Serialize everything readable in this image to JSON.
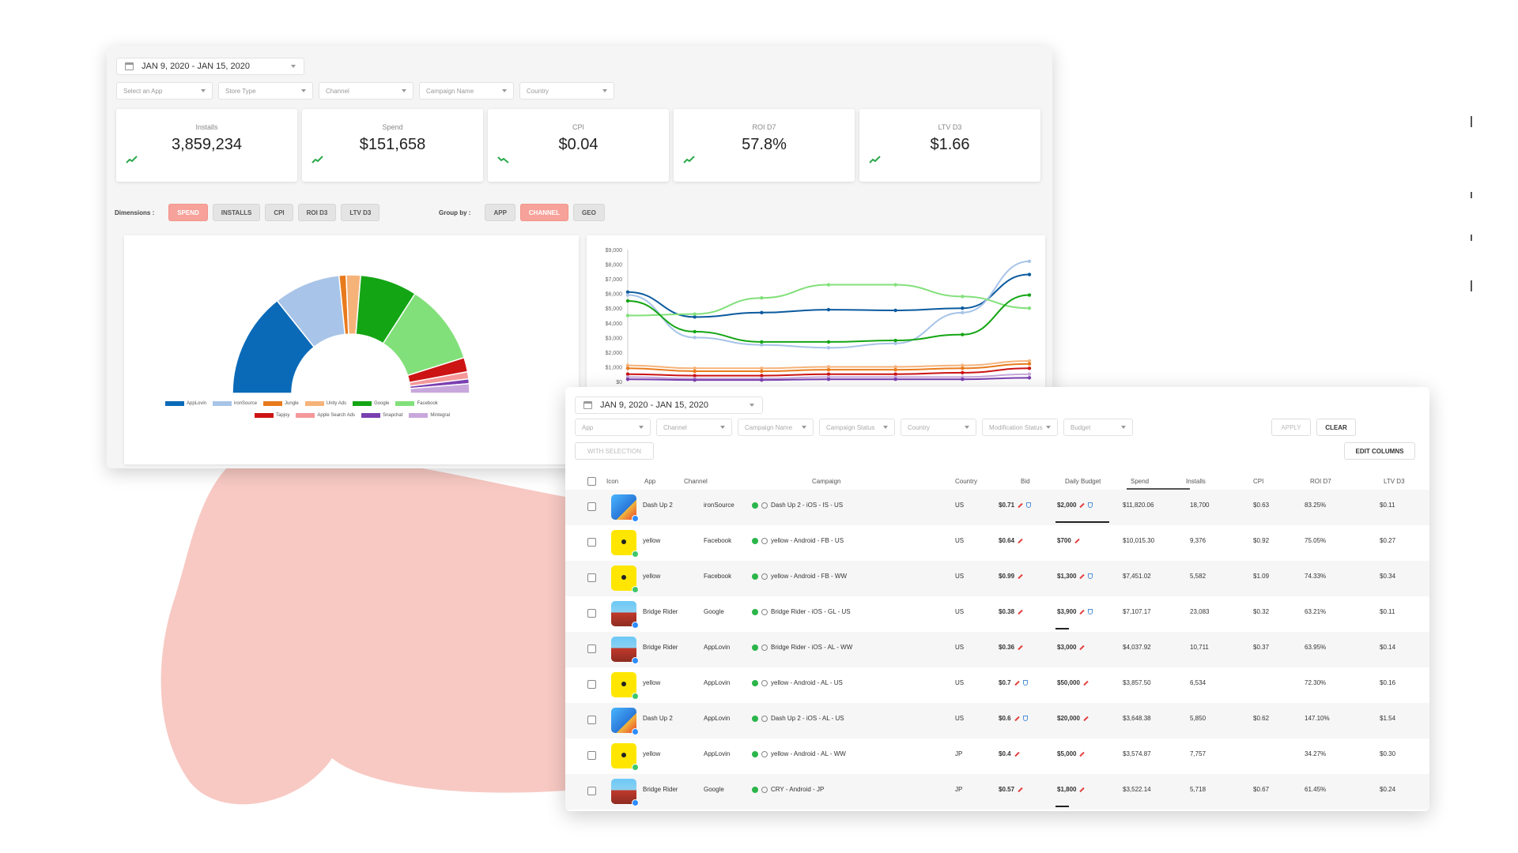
{
  "dashboard": {
    "date_range": "JAN 9, 2020 - JAN 15, 2020",
    "filters": [
      "Select an App",
      "Store Type",
      "Channel",
      "Campaign Name",
      "Country"
    ],
    "kpis": [
      {
        "label": "Installs",
        "value": "3,859,234",
        "trend": "up"
      },
      {
        "label": "Spend",
        "value": "$151,658",
        "trend": "up"
      },
      {
        "label": "CPI",
        "value": "$0.04",
        "trend": "down"
      },
      {
        "label": "ROI D7",
        "value": "57.8%",
        "trend": "up"
      },
      {
        "label": "LTV D3",
        "value": "$1.66",
        "trend": "up"
      }
    ],
    "dimensions_label": "Dimensions :",
    "dimensions": [
      {
        "label": "SPEND",
        "active": true
      },
      {
        "label": "INSTALLS",
        "active": false
      },
      {
        "label": "CPI",
        "active": false
      },
      {
        "label": "ROI D3",
        "active": false
      },
      {
        "label": "LTV D3",
        "active": false
      }
    ],
    "group_by_label": "Group by :",
    "group_by": [
      {
        "label": "APP",
        "active": false
      },
      {
        "label": "CHANNEL",
        "active": true
      },
      {
        "label": "GEO",
        "active": false
      }
    ]
  },
  "chart_data": [
    {
      "type": "pie",
      "variant": "half-donut",
      "categories": [
        "AppLovin",
        "ironSource",
        "Jungle",
        "Unity Ads",
        "Google",
        "Facebook",
        "Tapjoy",
        "Apple Search Ads",
        "Snapchat",
        "Mintegral"
      ],
      "values": [
        22,
        14,
        1.5,
        3,
        12,
        17,
        3,
        1.5,
        1,
        2
      ],
      "colors": [
        "#0a6ab8",
        "#a8c4e8",
        "#e87a1c",
        "#f5b37a",
        "#14a514",
        "#82e07a",
        "#cc1414",
        "#f5989a",
        "#7a3fb0",
        "#c8a8dc"
      ],
      "legend_position": "bottom"
    },
    {
      "type": "line",
      "y_ticks": [
        "$9,000",
        "$8,000",
        "$7,000",
        "$6,000",
        "$5,000",
        "$4,000",
        "$3,000",
        "$2,000",
        "$1,000",
        "$0"
      ],
      "ylim": [
        0,
        9000
      ],
      "x": [
        0,
        1,
        2,
        3,
        4,
        5,
        6
      ],
      "series": [
        {
          "color": "#0a5a9e",
          "values": [
            6100,
            4400,
            4700,
            4900,
            4850,
            5000,
            7300
          ]
        },
        {
          "color": "#a8c4e8",
          "values": [
            5900,
            3000,
            2500,
            2300,
            2600,
            4700,
            8200
          ]
        },
        {
          "color": "#82e07a",
          "values": [
            4500,
            4600,
            5700,
            6600,
            6600,
            5800,
            5000
          ]
        },
        {
          "color": "#14a514",
          "values": [
            5500,
            3400,
            2700,
            2700,
            2800,
            3200,
            5900
          ]
        },
        {
          "color": "#f5b37a",
          "values": [
            1100,
            900,
            900,
            1000,
            1000,
            1100,
            1400
          ]
        },
        {
          "color": "#e87a1c",
          "values": [
            900,
            700,
            700,
            800,
            800,
            900,
            1200
          ]
        },
        {
          "color": "#cc1414",
          "values": [
            500,
            400,
            400,
            500,
            500,
            600,
            900
          ]
        },
        {
          "color": "#c8a8dc",
          "values": [
            300,
            200,
            200,
            300,
            300,
            300,
            500
          ]
        },
        {
          "color": "#7a3fb0",
          "values": [
            150,
            100,
            100,
            150,
            150,
            150,
            250
          ]
        }
      ]
    }
  ],
  "campaigns": {
    "date_range": "JAN 9, 2020 - JAN 15, 2020",
    "filters": [
      "App",
      "Channel",
      "Campaign Name",
      "Campaign Status",
      "Country",
      "Modification Status",
      "Budget"
    ],
    "apply_label": "APPLY",
    "clear_label": "CLEAR",
    "with_selection_label": "WITH SELECTION",
    "edit_columns_label": "EDIT COLUMNS",
    "columns": [
      "Icon",
      "App",
      "Channel",
      "Campaign",
      "Country",
      "Bid",
      "Daily Budget",
      "Spend",
      "Installs",
      "CPI",
      "ROI D7",
      "LTV D3"
    ],
    "rows": [
      {
        "icon": "dash",
        "platform": "ios",
        "app": "Dash Up 2",
        "channel": "ironSource",
        "campaign": "Dash Up 2 - iOS - IS - US",
        "country": "US",
        "bid": "$0.71",
        "bid_shield": true,
        "budget": "$2,000",
        "budget_shield": true,
        "spend": "$11,820.06",
        "installs": "18,700",
        "cpi": "$0.63",
        "roi": "83.25%",
        "ltv": "$0.11",
        "budget_fill": 1.0
      },
      {
        "icon": "yellow",
        "platform": "android",
        "app": "yellow",
        "channel": "Facebook",
        "campaign": "yellow - Android - FB - US",
        "country": "US",
        "bid": "$0.64",
        "bid_shield": false,
        "budget": "$700",
        "budget_shield": false,
        "spend": "$10,015.30",
        "installs": "9,376",
        "cpi": "$0.92",
        "roi": "75.05%",
        "ltv": "$0.27",
        "budget_fill": 0
      },
      {
        "icon": "yellow",
        "platform": "android",
        "app": "yellow",
        "channel": "Facebook",
        "campaign": "yellow - Android - FB - WW",
        "country": "US",
        "bid": "$0.99",
        "bid_shield": false,
        "budget": "$1,300",
        "budget_shield": true,
        "spend": "$7,451.02",
        "installs": "5,582",
        "cpi": "$1.09",
        "roi": "74.33%",
        "ltv": "$0.34",
        "budget_fill": 0
      },
      {
        "icon": "bridge",
        "platform": "ios",
        "app": "Bridge Rider",
        "channel": "Google",
        "campaign": "Bridge Rider - iOS - GL - US",
        "country": "US",
        "bid": "$0.38",
        "bid_shield": false,
        "budget": "$3,900",
        "budget_shield": true,
        "spend": "$7,107.17",
        "installs": "23,083",
        "cpi": "$0.32",
        "roi": "63.21%",
        "ltv": "$0.11",
        "budget_fill": 0.25
      },
      {
        "icon": "bridge",
        "platform": "ios",
        "app": "Bridge Rider",
        "channel": "AppLovin",
        "campaign": "Bridge Rider - iOS - AL - WW",
        "country": "US",
        "bid": "$0.36",
        "bid_shield": false,
        "budget": "$3,000",
        "budget_shield": false,
        "spend": "$4,037.92",
        "installs": "10,711",
        "cpi": "$0.37",
        "roi": "63.95%",
        "ltv": "$0.14",
        "budget_fill": 0
      },
      {
        "icon": "yellow",
        "platform": "android",
        "app": "yellow",
        "channel": "AppLovin",
        "campaign": "yellow - Android - AL - US",
        "country": "US",
        "bid": "$0.7",
        "bid_shield": true,
        "budget": "$50,000",
        "budget_shield": false,
        "spend": "$3,857.50",
        "installs": "6,534",
        "cpi": "",
        "roi": "72.30%",
        "ltv": "$0.16",
        "budget_fill": 0
      },
      {
        "icon": "dash",
        "platform": "ios",
        "app": "Dash Up 2",
        "channel": "AppLovin",
        "campaign": "Dash Up 2 - iOS - AL - US",
        "country": "US",
        "bid": "$0.6",
        "bid_shield": true,
        "budget": "$20,000",
        "budget_shield": false,
        "spend": "$3,648.38",
        "installs": "5,850",
        "cpi": "$0.62",
        "roi": "147.10%",
        "ltv": "$1.54",
        "budget_fill": 0
      },
      {
        "icon": "yellow",
        "platform": "android",
        "app": "yellow",
        "channel": "AppLovin",
        "campaign": "yellow - Android - AL - WW",
        "country": "JP",
        "bid": "$0.4",
        "bid_shield": false,
        "budget": "$5,000",
        "budget_shield": false,
        "spend": "$3,574.87",
        "installs": "7,757",
        "cpi": "",
        "roi": "34.27%",
        "ltv": "$0.30",
        "budget_fill": 0
      },
      {
        "icon": "bridge",
        "platform": "ios",
        "app": "Bridge Rider",
        "channel": "Google",
        "campaign": "CRY - Android - JP",
        "country": "JP",
        "bid": "$0.57",
        "bid_shield": false,
        "budget": "$1,800",
        "budget_shield": false,
        "spend": "$3,522.14",
        "installs": "5,718",
        "cpi": "$0.67",
        "roi": "61.45%",
        "ltv": "$0.24",
        "budget_fill": 0.25
      }
    ]
  }
}
